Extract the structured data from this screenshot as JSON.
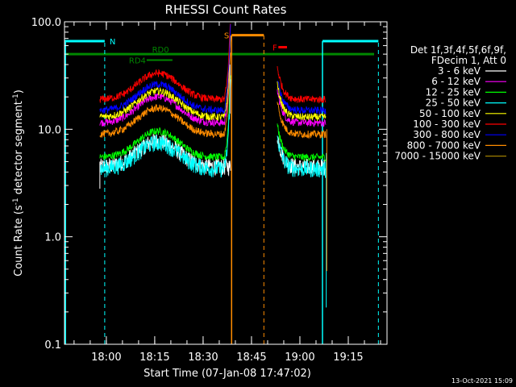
{
  "chart_data": {
    "type": "line",
    "title": "RHESSI Count Rates",
    "xlabel": "Start Time (07-Jan-08 17:47:02)",
    "ylabel_main": "Count Rate (s",
    "ylabel_sup1": "-1",
    "ylabel_mid": " detector segment",
    "ylabel_sup2": "-1",
    "ylabel_end": ")",
    "ylog": true,
    "ylim": [
      0.1,
      100.0
    ],
    "xlim": [
      "17:47:02",
      "19:27:00"
    ],
    "yticks": [
      "0.1",
      "1.0",
      "10.0",
      "100.0"
    ],
    "xticks": [
      "18:00",
      "18:15",
      "18:30",
      "18:45",
      "19:00",
      "19:15"
    ],
    "timestamp": "13-Oct-2021 15:09",
    "legend": {
      "header1": "Det 1f,3f,4f,5f,6f,9f,",
      "header2": "FDecim 1, Att 0",
      "position": "right"
    },
    "series": [
      {
        "name": "3 - 6 keV",
        "color": "#ffffff",
        "level": 4.5
      },
      {
        "name": "6 - 12 keV",
        "color": "#ff00ff",
        "level": 11.5
      },
      {
        "name": "12 - 25 keV",
        "color": "#00ff00",
        "level": 5.5
      },
      {
        "name": "25 - 50 keV",
        "color": "#00ffff",
        "level": 4.3
      },
      {
        "name": "50 - 100 keV",
        "color": "#ffff00",
        "level": 13
      },
      {
        "name": "100 - 300 keV",
        "color": "#ff0000",
        "level": 19
      },
      {
        "name": "300 - 800 keV",
        "color": "#0000ff",
        "level": 15
      },
      {
        "name": "800 - 7000 keV",
        "color": "#ff8c00",
        "level": 9
      },
      {
        "name": "7000 - 15000 keV",
        "color": "#a08000",
        "level": 0
      }
    ],
    "segments": [
      {
        "start": "17:58:00",
        "end": "18:38:30"
      },
      {
        "start": "18:53:00",
        "end": "19:08:00"
      }
    ],
    "flags": [
      {
        "label": "N",
        "color": "#00ffff"
      },
      {
        "label": "RD0",
        "color": "#008800"
      },
      {
        "label": "RD4",
        "color": "#008800"
      },
      {
        "label": "S",
        "color": "#ff8c00"
      },
      {
        "label": "F",
        "color": "#ff0000"
      }
    ]
  }
}
